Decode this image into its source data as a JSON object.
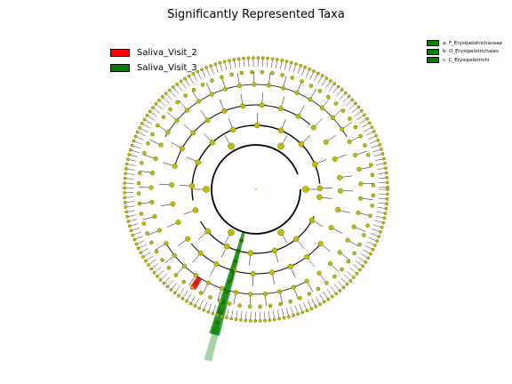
{
  "title": "Significantly Represented Taxa",
  "legend": [
    {
      "label": "Saliva_Visit_2",
      "color": "#ff0000"
    },
    {
      "label": "Saliva_Visit_3",
      "color": "#008000"
    }
  ],
  "clade_legend": [
    {
      "label": "a: F_Erysipelotrichaceae",
      "color": "#008000"
    },
    {
      "label": "b: O_Erysipelotrichales",
      "color": "#008000"
    },
    {
      "label": "c: C_Erysipelotrichi",
      "color": "#008000"
    }
  ],
  "colors": {
    "node": "#bfbf00",
    "node_edge": "#6b6b00",
    "highlight_visit2": "#ff0000",
    "highlight_visit3": "#008000",
    "background": "#ffffff"
  }
}
